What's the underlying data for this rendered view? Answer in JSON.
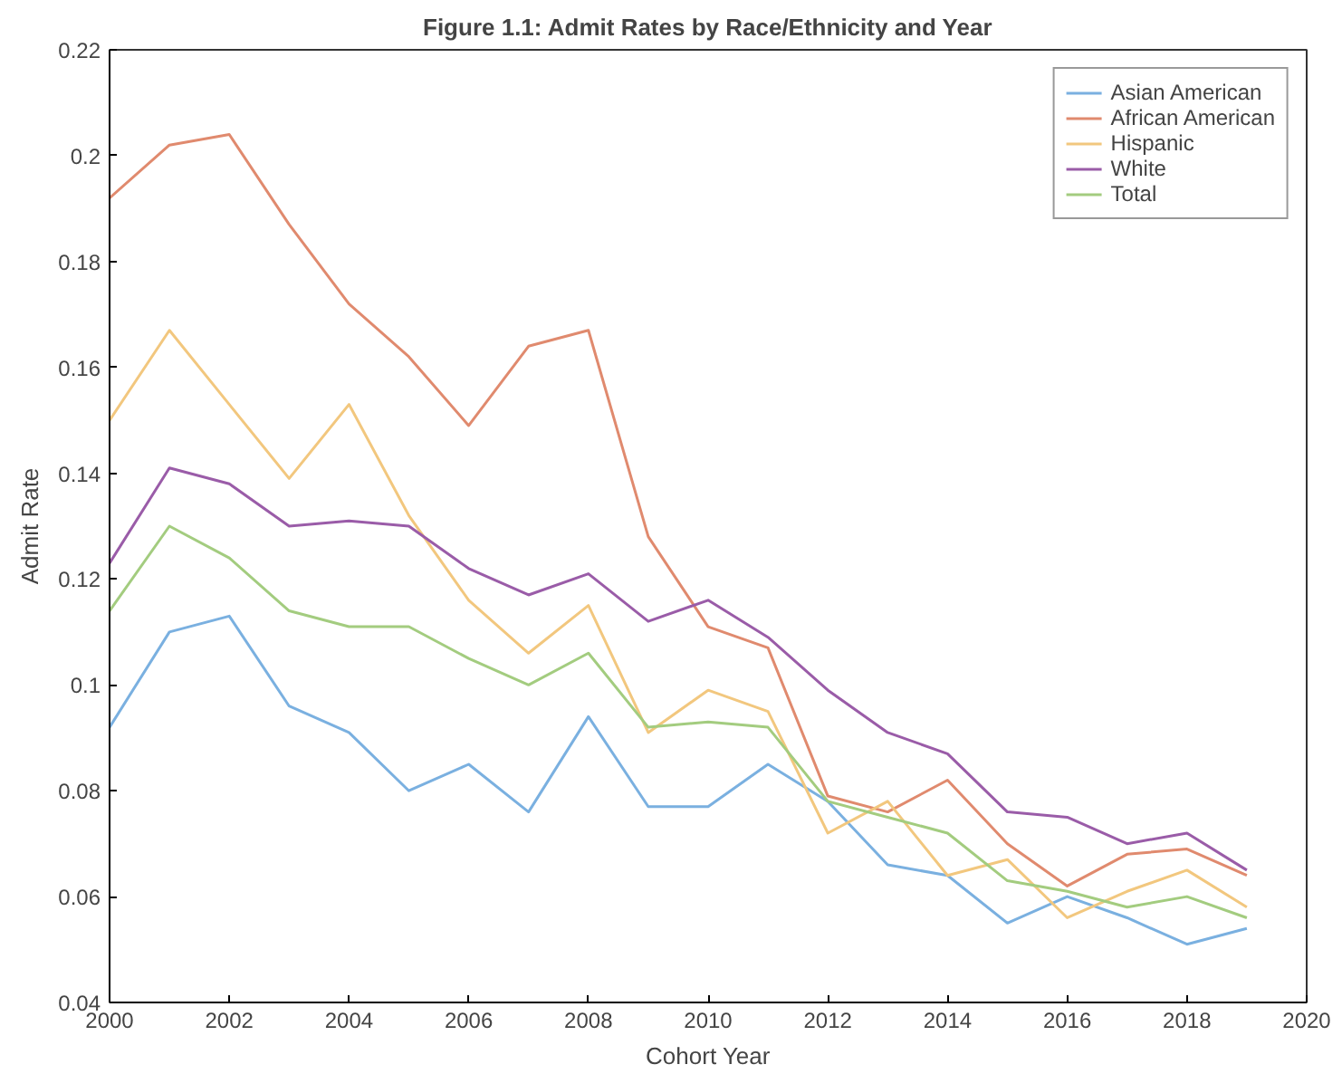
{
  "chart_data": {
    "type": "line",
    "title": "Figure 1.1: Admit Rates by Race/Ethnicity and Year",
    "xlabel": "Cohort Year",
    "ylabel": "Admit Rate",
    "x": [
      2000,
      2001,
      2002,
      2003,
      2004,
      2005,
      2006,
      2007,
      2008,
      2009,
      2010,
      2011,
      2012,
      2013,
      2014,
      2015,
      2016,
      2017,
      2018,
      2019
    ],
    "series": [
      {
        "name": "Asian American",
        "color": "#7ab0e0",
        "values": [
          0.092,
          0.11,
          0.113,
          0.096,
          0.091,
          0.08,
          0.085,
          0.076,
          0.094,
          0.077,
          0.077,
          0.085,
          0.078,
          0.066,
          0.064,
          0.055,
          0.06,
          0.056,
          0.051,
          0.054
        ]
      },
      {
        "name": "African American",
        "color": "#e08a6e",
        "values": [
          0.192,
          0.202,
          0.204,
          0.187,
          0.172,
          0.162,
          0.149,
          0.164,
          0.167,
          0.128,
          0.111,
          0.107,
          0.079,
          0.076,
          0.082,
          0.07,
          0.062,
          0.068,
          0.069,
          0.064
        ]
      },
      {
        "name": "Hispanic",
        "color": "#f2c77e",
        "values": [
          0.15,
          0.167,
          0.153,
          0.139,
          0.153,
          0.132,
          0.116,
          0.106,
          0.115,
          0.091,
          0.099,
          0.095,
          0.072,
          0.078,
          0.064,
          0.067,
          0.056,
          0.061,
          0.065,
          0.058
        ]
      },
      {
        "name": "White",
        "color": "#9a5ca8",
        "values": [
          0.123,
          0.141,
          0.138,
          0.13,
          0.131,
          0.13,
          0.122,
          0.117,
          0.121,
          0.112,
          0.116,
          0.109,
          0.099,
          0.091,
          0.087,
          0.076,
          0.075,
          0.07,
          0.072,
          0.065
        ]
      },
      {
        "name": "Total",
        "color": "#a3cc7f",
        "values": [
          0.114,
          0.13,
          0.124,
          0.114,
          0.111,
          0.111,
          0.105,
          0.1,
          0.106,
          0.092,
          0.093,
          0.092,
          0.078,
          0.075,
          0.072,
          0.063,
          0.061,
          0.058,
          0.06,
          0.056
        ]
      }
    ],
    "xlim": [
      2000,
      2020
    ],
    "xticks": [
      2000,
      2002,
      2004,
      2006,
      2008,
      2010,
      2012,
      2014,
      2016,
      2018,
      2020
    ],
    "ylim": [
      0.04,
      0.22
    ],
    "yticks": [
      0.04,
      0.06,
      0.08,
      0.1,
      0.12,
      0.14,
      0.16,
      0.18,
      0.2,
      0.22
    ],
    "grid": false,
    "legend": "top right",
    "marker": "none",
    "line_style": "solid"
  }
}
